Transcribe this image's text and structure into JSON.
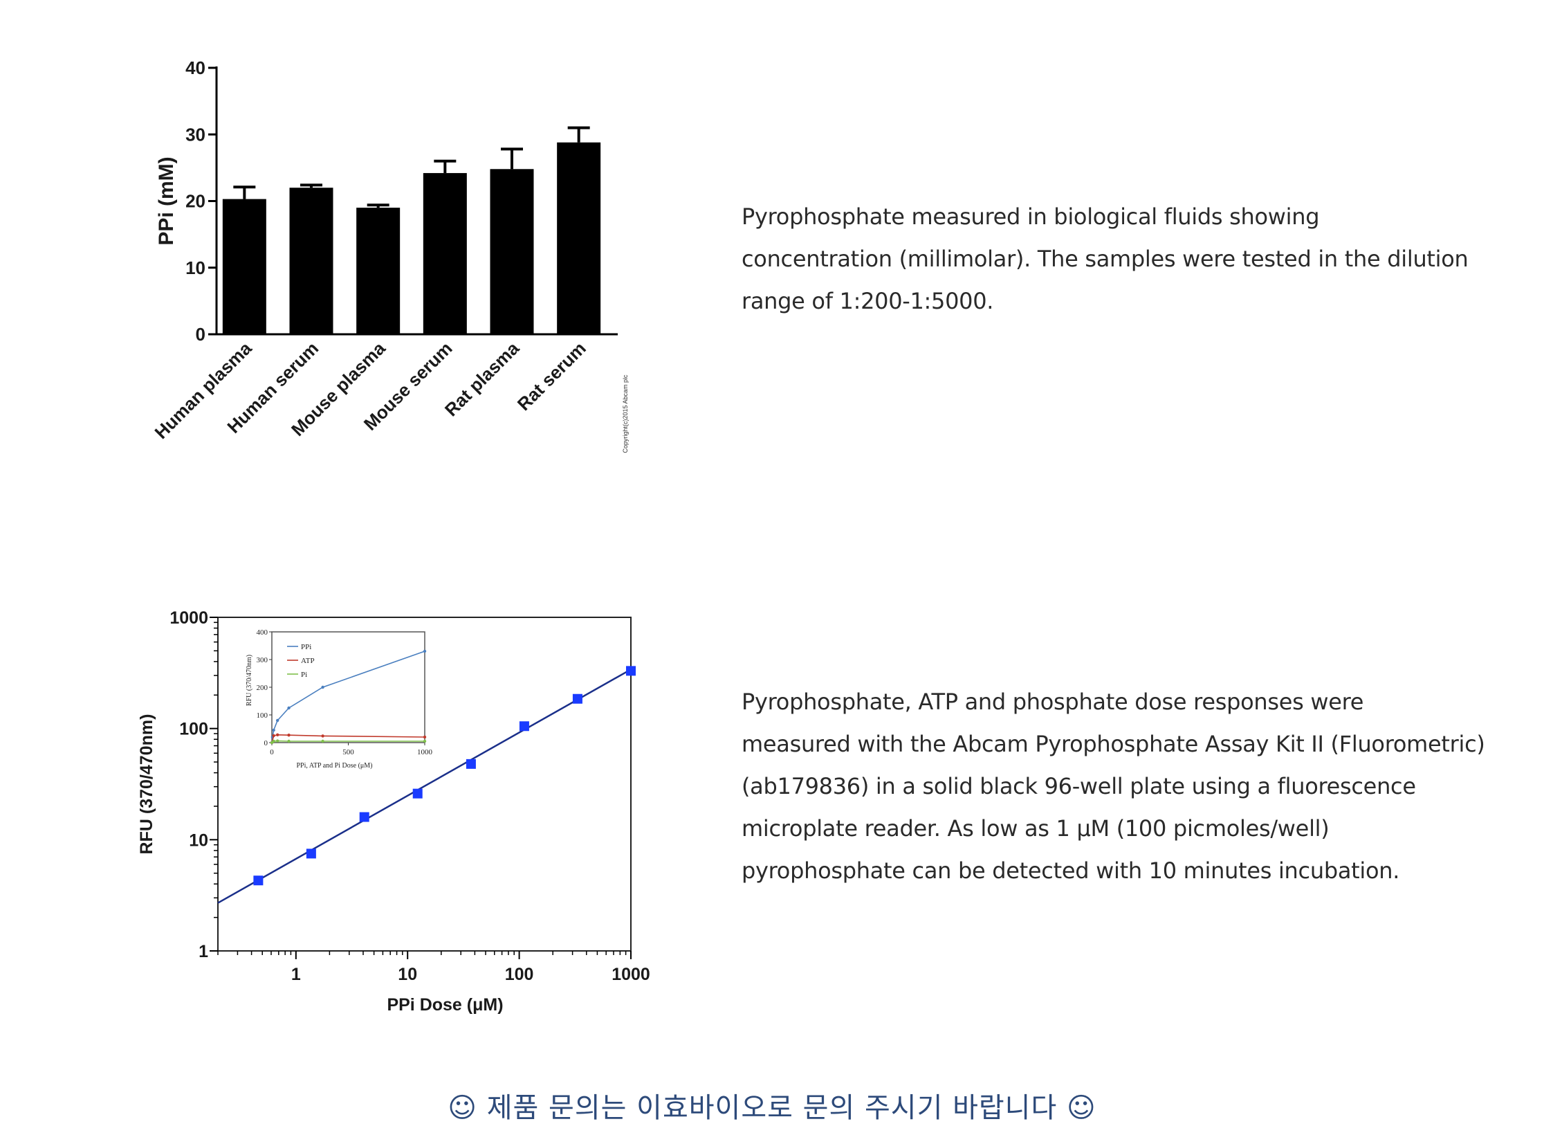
{
  "chart_data": [
    {
      "type": "bar",
      "title": "",
      "categories": [
        "Human plasma",
        "Human serum",
        "Mouse plasma",
        "Mouse serum",
        "Rat plasma",
        "Rat serum"
      ],
      "values": [
        20.3,
        22.0,
        19.0,
        24.2,
        24.8,
        28.8
      ],
      "errors": [
        1.8,
        0.4,
        0.4,
        1.8,
        3.0,
        2.2
      ],
      "ylabel": "PPi (mM)",
      "xlabel": "",
      "ylim": [
        0,
        40
      ],
      "yticks": [
        "0",
        "10",
        "20",
        "30",
        "40"
      ],
      "bar_color": "#000000",
      "copyright": "Copyright(c)2015 Abcam plc"
    },
    {
      "type": "scatter",
      "title": "",
      "xlabel": "PPi Dose (μM)",
      "ylabel": "RFU (370/470nm)",
      "x_scale": "log",
      "y_scale": "log",
      "xlim": [
        0.2,
        1000
      ],
      "ylim": [
        1,
        1000
      ],
      "xticks": [
        "1",
        "10",
        "100",
        "1000"
      ],
      "yticks": [
        "1",
        "10",
        "100",
        "1000"
      ],
      "x": [
        0.46,
        1.37,
        4.1,
        12.3,
        37,
        111,
        333,
        1000
      ],
      "y": [
        4.3,
        7.5,
        16,
        26,
        48,
        105,
        185,
        330
      ],
      "fit_line": {
        "x": [
          0.2,
          1000
        ],
        "y": [
          2.7,
          340
        ]
      },
      "marker_color": "#1a3bff",
      "line_color": "#1a2f8a",
      "inset": {
        "type": "line",
        "xlabel": "PPi, ATP and Pi Dose (μM)",
        "ylabel": "RFU (370/470nm)",
        "xlim": [
          0,
          1000
        ],
        "ylim": [
          0,
          400
        ],
        "xticks": [
          "0",
          "500",
          "1000"
        ],
        "yticks": [
          "0",
          "100",
          "200",
          "300",
          "400"
        ],
        "series": [
          {
            "name": "PPi",
            "color": "#4a7fbf",
            "x": [
              0,
              4,
              12,
              37,
              111,
              333,
              1000
            ],
            "y": [
              0,
              20,
              45,
              80,
              125,
              200,
              330
            ]
          },
          {
            "name": "ATP",
            "color": "#c0392b",
            "x": [
              0,
              12,
              37,
              111,
              333,
              1000
            ],
            "y": [
              0,
              25,
              28,
              27,
              24,
              20
            ]
          },
          {
            "name": "Pi",
            "color": "#7fbf4a",
            "x": [
              0,
              12,
              37,
              111,
              333,
              1000
            ],
            "y": [
              0,
              5,
              6,
              5,
              5,
              5
            ]
          }
        ]
      }
    }
  ],
  "captions": {
    "top": [
      "Pyrophosphate measured in biological fluids showing",
      "concentration (millimolar). The samples were tested in the dilution",
      "range of 1:200-1:5000."
    ],
    "bottom": [
      "Pyrophosphate, ATP and phosphate dose responses were",
      "measured with the Abcam Pyrophosphate Assay Kit II (Fluorometric)",
      "(ab179836) in a solid black 96-well plate using a fluorescence",
      "microplate reader. As low as 1 μM (100 picmoles/well)",
      "pyrophosphate can be detected with 10 minutes incubation."
    ]
  },
  "footer": {
    "text": "☺ 제품 문의는 이효바이오로 문의 주시기 바랍니다 ☺"
  }
}
